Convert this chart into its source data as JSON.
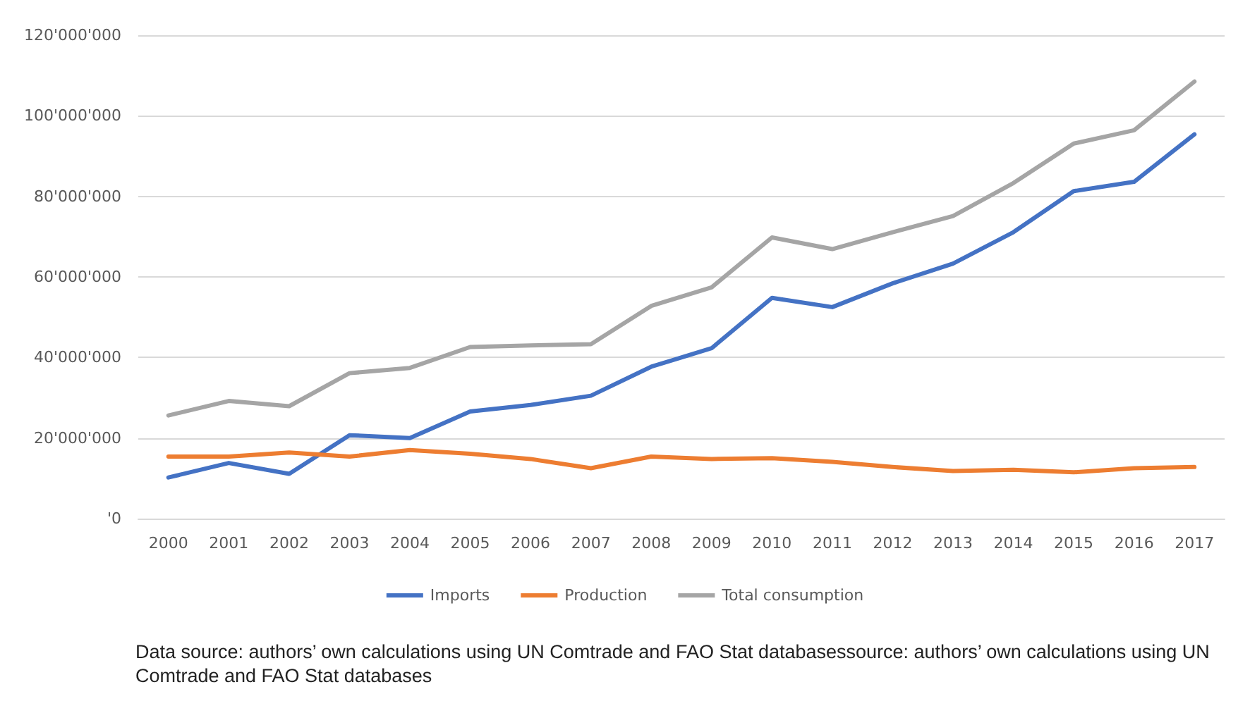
{
  "chart_data": {
    "type": "line",
    "categories": [
      "2000",
      "2001",
      "2002",
      "2003",
      "2004",
      "2005",
      "2006",
      "2007",
      "2008",
      "2009",
      "2010",
      "2011",
      "2012",
      "2013",
      "2014",
      "2015",
      "2016",
      "2017"
    ],
    "series": [
      {
        "name": "Imports",
        "color": "#4472c4",
        "values": [
          10200000,
          13800000,
          11100000,
          20700000,
          20000000,
          26600000,
          28200000,
          30500000,
          37700000,
          42300000,
          54800000,
          52500000,
          58400000,
          63300000,
          71100000,
          81300000,
          83600000,
          95400000
        ]
      },
      {
        "name": "Production",
        "color": "#ed7d31",
        "values": [
          15400000,
          15400000,
          16400000,
          15400000,
          17000000,
          16100000,
          14800000,
          12500000,
          15400000,
          14800000,
          15000000,
          14100000,
          12800000,
          11800000,
          12100000,
          11500000,
          12500000,
          12800000
        ]
      },
      {
        "name": "Total consumption",
        "color": "#a5a5a5",
        "values": [
          25600000,
          29200000,
          27900000,
          36100000,
          37400000,
          42600000,
          43000000,
          43300000,
          52800000,
          57400000,
          69800000,
          66900000,
          71100000,
          75100000,
          83300000,
          93100000,
          96400000,
          108500000
        ]
      }
    ],
    "ylim": [
      0,
      120000000
    ],
    "yticks": [
      {
        "value": 0,
        "label": "'0"
      },
      {
        "value": 20000000,
        "label": "20'000'000"
      },
      {
        "value": 40000000,
        "label": "40'000'000"
      },
      {
        "value": 60000000,
        "label": "60'000'000"
      },
      {
        "value": 80000000,
        "label": "80'000'000"
      },
      {
        "value": 100000000,
        "label": "100'000'000"
      },
      {
        "value": 120000000,
        "label": "120'000'000"
      }
    ],
    "grid": "y",
    "legend": "bottom",
    "marker": "none",
    "line_style": "solid",
    "annotations": [
      "Data source: authors’ own calculations using UN Comtrade and FAO Stat databasessource: authors’ own calculations using UN Comtrade and FAO Stat databases"
    ]
  }
}
